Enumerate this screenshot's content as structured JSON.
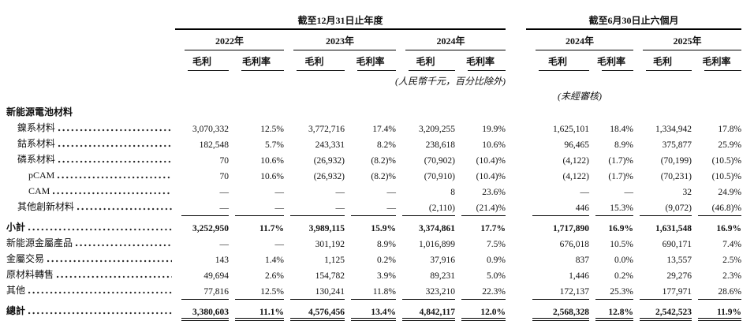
{
  "table": {
    "period_headers": [
      "截至12月31日止年度",
      "截至6月30日止六個月"
    ],
    "year_headers": [
      "2022年",
      "2023年",
      "2024年",
      "2024年",
      "2025年"
    ],
    "sub_headers": [
      "毛利",
      "毛利率",
      "毛利",
      "毛利率",
      "毛利",
      "毛利率",
      "毛利",
      "毛利率",
      "毛利",
      "毛利率"
    ],
    "notes": {
      "units": "(人民幣千元，百分比除外)",
      "unaudited": "(未經審核)"
    },
    "rows": [
      {
        "label": "新能源電池材料",
        "indent": 0,
        "bold": true,
        "dots": false,
        "cells": null
      },
      {
        "label": "鎳系材料",
        "indent": 1,
        "bold": false,
        "dots": true,
        "cells": [
          "3,070,332",
          "12.5%",
          "3,772,716",
          "17.4%",
          "3,209,255",
          "19.9%",
          "1,625,101",
          "18.4%",
          "1,334,942",
          "17.8%"
        ]
      },
      {
        "label": "鈷系材料",
        "indent": 1,
        "bold": false,
        "dots": true,
        "cells": [
          "182,548",
          "5.7%",
          "243,331",
          "8.2%",
          "238,618",
          "10.6%",
          "96,465",
          "8.9%",
          "375,877",
          "25.9%"
        ]
      },
      {
        "label": "磷系材料",
        "indent": 1,
        "bold": false,
        "dots": true,
        "cells": [
          "70",
          "10.6%",
          "(26,932)",
          "(8.2)%",
          "(70,902)",
          "(10.4)%",
          "(4,122)",
          "(1.7)%",
          "(70,199)",
          "(10.5)%"
        ]
      },
      {
        "label": "pCAM",
        "indent": 2,
        "bold": false,
        "dots": true,
        "cells": [
          "70",
          "10.6%",
          "(26,932)",
          "(8.2)%",
          "(70,910)",
          "(10.4)%",
          "(4,122)",
          "(1.7)%",
          "(70,231)",
          "(10.5)%"
        ]
      },
      {
        "label": "CAM",
        "indent": 2,
        "bold": false,
        "dots": true,
        "cells": [
          "—",
          "—",
          "—",
          "—",
          "8",
          "23.6%",
          "—",
          "—",
          "32",
          "24.9%"
        ]
      },
      {
        "label": "其他創新材料",
        "indent": 1,
        "bold": false,
        "dots": true,
        "cells": [
          "—",
          "—",
          "—",
          "—",
          "(2,110)",
          "(21.4)%",
          "446",
          "15.3%",
          "(9,072)",
          "(46.8)%"
        ]
      },
      {
        "label": "小計",
        "indent": 0,
        "bold": true,
        "dots": true,
        "rule_before": true,
        "cells": [
          "3,252,950",
          "11.7%",
          "3,989,115",
          "15.9%",
          "3,374,861",
          "17.7%",
          "1,717,890",
          "16.9%",
          "1,631,548",
          "16.9%"
        ]
      },
      {
        "label": "新能源金屬產品",
        "indent": 0,
        "bold": false,
        "dots": true,
        "cells": [
          "—",
          "—",
          "301,192",
          "8.9%",
          "1,016,899",
          "7.5%",
          "676,018",
          "10.5%",
          "690,171",
          "7.4%"
        ]
      },
      {
        "label": "金屬交易",
        "indent": 0,
        "bold": false,
        "dots": true,
        "cells": [
          "143",
          "1.4%",
          "1,125",
          "0.2%",
          "37,916",
          "0.9%",
          "837",
          "0.0%",
          "13,557",
          "2.5%"
        ]
      },
      {
        "label": "原材料轉售",
        "indent": 0,
        "bold": false,
        "dots": true,
        "cells": [
          "49,694",
          "2.6%",
          "154,782",
          "3.9%",
          "89,231",
          "5.0%",
          "1,446",
          "0.2%",
          "29,276",
          "2.3%"
        ]
      },
      {
        "label": "其他",
        "indent": 0,
        "bold": false,
        "dots": true,
        "cells": [
          "77,816",
          "12.5%",
          "130,241",
          "11.8%",
          "323,210",
          "22.3%",
          "172,137",
          "25.3%",
          "177,971",
          "28.6%"
        ]
      },
      {
        "label": "總計",
        "indent": 0,
        "bold": true,
        "dots": true,
        "rule_before": true,
        "double_rule_after": true,
        "cells": [
          "3,380,603",
          "11.1%",
          "4,576,456",
          "13.4%",
          "4,842,117",
          "12.0%",
          "2,568,328",
          "12.8%",
          "2,542,523",
          "11.9%"
        ]
      }
    ]
  }
}
